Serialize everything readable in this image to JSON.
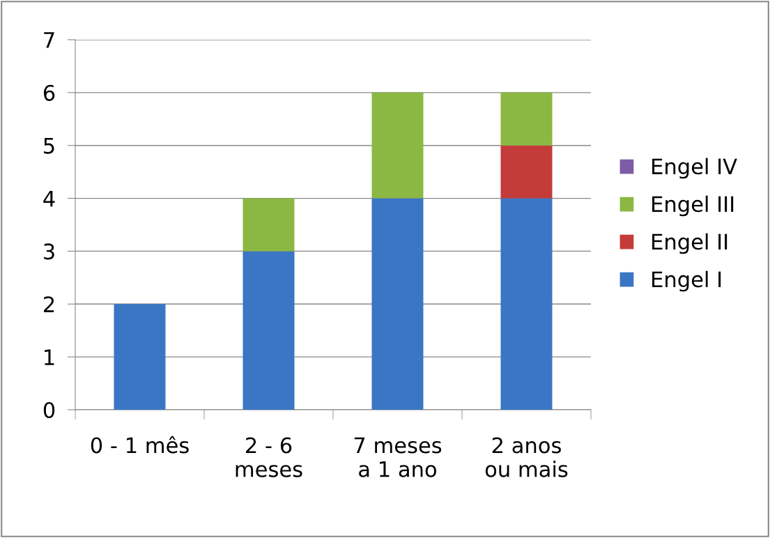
{
  "chart_data": {
    "type": "bar",
    "stacked": true,
    "categories": [
      "0 - 1 mês",
      "2 - 6\nmeses",
      "7 meses\na 1 ano",
      "2 anos\nou mais"
    ],
    "series": [
      {
        "name": "Engel I",
        "color": "#3a76c4",
        "values": [
          2,
          3,
          4,
          4
        ]
      },
      {
        "name": "Engel II",
        "color": "#c33c3a",
        "values": [
          0,
          0,
          0,
          1
        ]
      },
      {
        "name": "Engel III",
        "color": "#8bb843",
        "values": [
          0,
          1,
          2,
          1
        ]
      },
      {
        "name": "Engel IV",
        "color": "#7d5ba6",
        "values": [
          0,
          0,
          0,
          0
        ]
      }
    ],
    "ylim": [
      0,
      7
    ],
    "yticks": [
      0,
      1,
      2,
      3,
      4,
      5,
      6,
      7
    ],
    "grid": "y",
    "legend": "right"
  }
}
